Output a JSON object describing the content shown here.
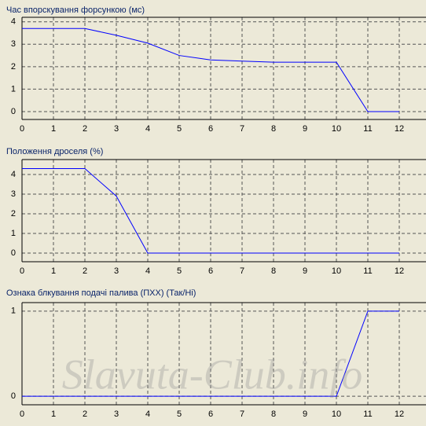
{
  "chart_data": [
    {
      "type": "line",
      "title": "Час впорскування форсункою (мс)",
      "color": "#0000ff",
      "grid": true,
      "x": [
        0,
        1,
        2,
        3,
        4,
        5,
        6,
        7,
        8,
        9,
        10,
        11,
        12
      ],
      "values": [
        3.7,
        3.7,
        3.7,
        3.4,
        3.05,
        2.5,
        2.3,
        2.25,
        2.2,
        2.2,
        2.2,
        0,
        0
      ],
      "xlim": [
        0,
        12.85
      ],
      "xticks": [
        0,
        1,
        2,
        3,
        4,
        5,
        6,
        7,
        8,
        9,
        10,
        11,
        12
      ],
      "ylim": [
        -0.35,
        4.2
      ],
      "yticks": [
        0,
        1,
        2,
        3,
        4
      ]
    },
    {
      "type": "line",
      "title": "Положення дроселя (%)",
      "color": "#0000ff",
      "grid": true,
      "x": [
        0,
        1,
        2,
        3,
        4,
        5,
        6,
        7,
        8,
        9,
        10,
        11,
        12
      ],
      "values": [
        4.3,
        4.3,
        4.3,
        2.9,
        0,
        0,
        0,
        0,
        0,
        0,
        0,
        0,
        0
      ],
      "xlim": [
        0,
        12.85
      ],
      "xticks": [
        0,
        1,
        2,
        3,
        4,
        5,
        6,
        7,
        8,
        9,
        10,
        11,
        12
      ],
      "ylim": [
        -0.44,
        4.76
      ],
      "yticks": [
        0,
        1,
        2,
        3,
        4
      ]
    },
    {
      "type": "line",
      "title": "Ознака блкування подачі палива (ПХХ) (Так/Ні)",
      "color": "#0000ff",
      "grid": true,
      "x": [
        0,
        1,
        2,
        3,
        4,
        5,
        6,
        7,
        8,
        9,
        10,
        11,
        12
      ],
      "values": [
        0,
        0,
        0,
        0,
        0,
        0,
        0,
        0,
        0,
        0,
        0,
        1,
        1
      ],
      "xlim": [
        0,
        12.85
      ],
      "xticks": [
        0,
        1,
        2,
        3,
        4,
        5,
        6,
        7,
        8,
        9,
        10,
        11,
        12
      ],
      "ylim": [
        -0.1,
        1.1
      ],
      "yticks": [
        0,
        1
      ]
    }
  ],
  "watermark": "Slavuta-Club.info"
}
